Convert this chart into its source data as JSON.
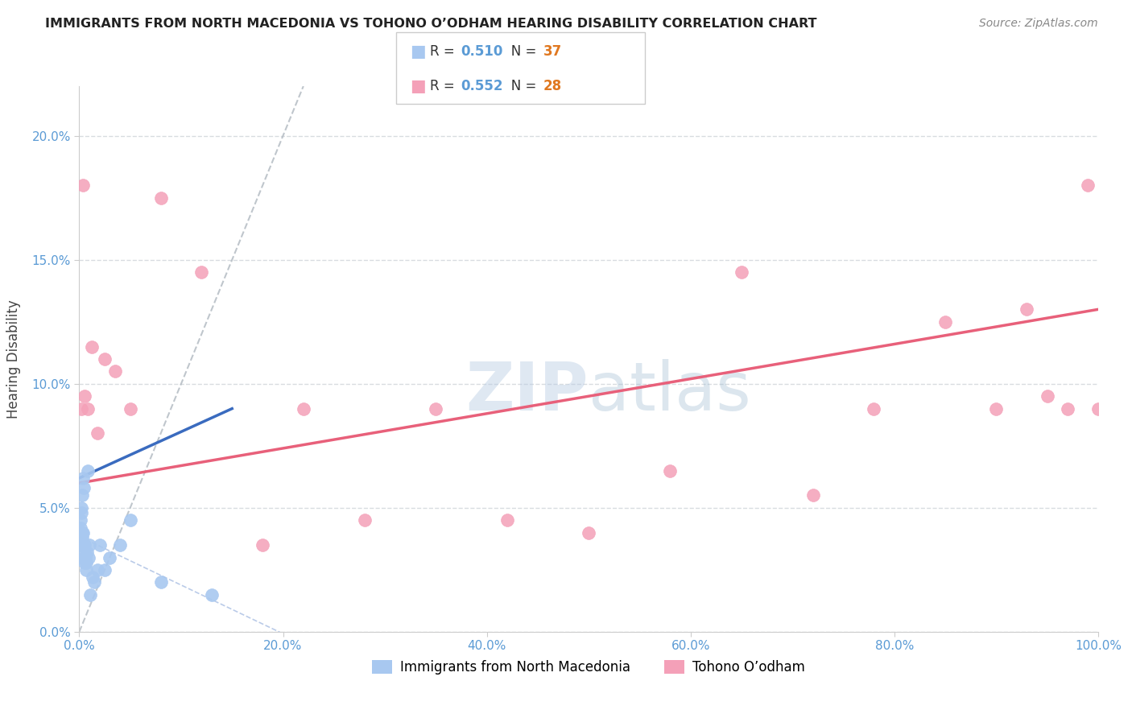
{
  "title": "IMMIGRANTS FROM NORTH MACEDONIA VS TOHONO O’ODHAM HEARING DISABILITY CORRELATION CHART",
  "source": "Source: ZipAtlas.com",
  "ylabel": "Hearing Disability",
  "blue_label": "Immigrants from North Macedonia",
  "pink_label": "Tohono O’odham",
  "blue_R": 0.51,
  "blue_N": 37,
  "pink_R": 0.552,
  "pink_N": 28,
  "blue_color": "#A8C8F0",
  "pink_color": "#F4A0B8",
  "blue_line_color": "#3A6BBF",
  "pink_line_color": "#E8607A",
  "ref_line_color": "#B0B8C0",
  "background_color": "#FFFFFF",
  "grid_color": "#D8DCE0",
  "tick_color": "#5B9BD5",
  "xlim": [
    0.0,
    100.0
  ],
  "ylim": [
    0.0,
    22.0
  ],
  "xticks": [
    0.0,
    20.0,
    40.0,
    60.0,
    80.0,
    100.0
  ],
  "yticks": [
    0.0,
    5.0,
    10.0,
    15.0,
    20.0
  ],
  "blue_x": [
    0.05,
    0.08,
    0.1,
    0.12,
    0.15,
    0.18,
    0.2,
    0.22,
    0.25,
    0.28,
    0.3,
    0.35,
    0.38,
    0.4,
    0.42,
    0.45,
    0.48,
    0.5,
    0.55,
    0.6,
    0.65,
    0.7,
    0.75,
    0.8,
    0.9,
    1.0,
    1.1,
    1.3,
    1.5,
    1.8,
    2.0,
    2.5,
    3.0,
    4.0,
    5.0,
    8.0,
    13.0
  ],
  "blue_y": [
    3.5,
    4.0,
    3.8,
    4.5,
    4.2,
    5.0,
    3.5,
    4.8,
    5.5,
    4.0,
    3.8,
    3.5,
    4.0,
    6.2,
    5.8,
    3.2,
    3.0,
    2.8,
    3.5,
    3.0,
    2.5,
    2.8,
    3.2,
    6.5,
    3.0,
    3.5,
    1.5,
    2.2,
    2.0,
    2.5,
    3.5,
    2.5,
    3.0,
    3.5,
    4.5,
    2.0,
    1.5
  ],
  "pink_x": [
    0.2,
    0.35,
    0.5,
    0.8,
    1.2,
    1.8,
    2.5,
    3.5,
    5.0,
    8.0,
    12.0,
    18.0,
    22.0,
    28.0,
    35.0,
    42.0,
    50.0,
    58.0,
    65.0,
    72.0,
    78.0,
    85.0,
    90.0,
    93.0,
    95.0,
    97.0,
    99.0,
    100.0
  ],
  "pink_y": [
    9.0,
    18.0,
    9.5,
    9.0,
    11.5,
    8.0,
    11.0,
    10.5,
    9.0,
    17.5,
    14.5,
    3.5,
    9.0,
    4.5,
    9.0,
    4.5,
    4.0,
    6.5,
    14.5,
    5.5,
    9.0,
    12.5,
    9.0,
    13.0,
    9.5,
    9.0,
    18.0,
    9.0
  ],
  "blue_line_x0": 0.0,
  "blue_line_x1": 15.0,
  "blue_line_y0": 6.2,
  "blue_line_y1": 9.0,
  "pink_line_x0": 0.0,
  "pink_line_x1": 100.0,
  "pink_line_y0": 6.0,
  "pink_line_y1": 13.0
}
